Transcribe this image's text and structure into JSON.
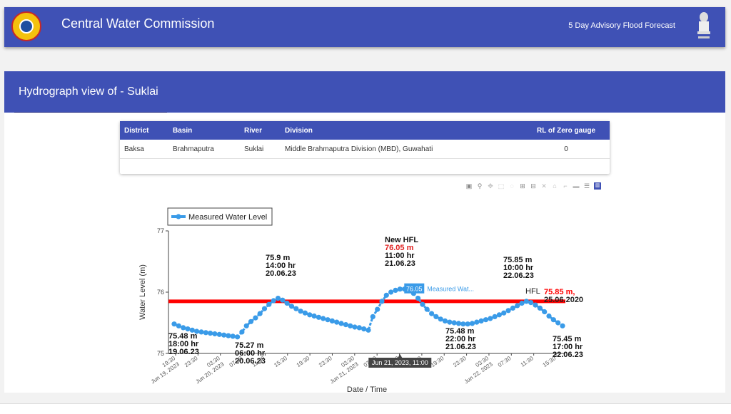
{
  "header": {
    "title": "Central Water Commission",
    "advisory_link": "5 Day Advisory Flood Forecast"
  },
  "section": {
    "title": "Hydrograph view of - Suklai"
  },
  "info_table": {
    "headers": [
      "District",
      "Basin",
      "River",
      "Division",
      "RL of Zero gauge"
    ],
    "row": [
      "Baksa",
      "Brahmaputra",
      "Suklai",
      "Middle Brahmaputra Division (MBD), Guwahati",
      "0"
    ]
  },
  "modebar": {
    "icons": [
      "camera-icon",
      "zoom-icon",
      "pan-icon",
      "box-select-icon",
      "lasso-icon",
      "zoom-in-icon",
      "zoom-out-icon",
      "autoscale-icon",
      "reset-axes-icon",
      "spike-lines-icon",
      "hover-closest-icon",
      "hover-compare-icon",
      "plotly-logo-icon"
    ]
  },
  "chart_data": {
    "type": "line",
    "xlabel": "Date / Time",
    "ylabel": "Water Level (m)",
    "ylim": [
      75,
      77
    ],
    "y_ticks": [
      "75",
      "76",
      "77"
    ],
    "x_ticks": [
      "19:30\nJun 19, 2023",
      "23:30",
      "03:30\nJun 20, 2023",
      "07:30",
      "11:30",
      "15:30",
      "19:30",
      "23:30",
      "03:30\nJun 21, 2023",
      "07:30",
      "11:30",
      "15:30",
      "19:30",
      "23:30",
      "03:30\nJun 22, 2023",
      "07:30",
      "11:30",
      "15:30"
    ],
    "legend": {
      "label": "Measured Water Level",
      "position": "top-left"
    },
    "hfl": {
      "value": 75.85,
      "label": "HFL",
      "value_label": "75.85 m,",
      "date_label": "25.06.2020",
      "color": "#ff0000"
    },
    "series": [
      {
        "name": "Measured Water Level",
        "color": "#3a9be8",
        "values": [
          75.48,
          75.45,
          75.42,
          75.4,
          75.38,
          75.36,
          75.35,
          75.34,
          75.33,
          75.32,
          75.31,
          75.3,
          75.29,
          75.28,
          75.27,
          75.35,
          75.45,
          75.52,
          75.58,
          75.65,
          75.73,
          75.8,
          75.86,
          75.9,
          75.87,
          75.82,
          75.77,
          75.73,
          75.69,
          75.66,
          75.63,
          75.61,
          75.59,
          75.57,
          75.55,
          75.53,
          75.51,
          75.49,
          75.47,
          75.45,
          75.43,
          75.42,
          75.4,
          75.38,
          75.6,
          75.72,
          75.85,
          75.95,
          76.0,
          76.03,
          76.05,
          76.05,
          76.03,
          75.98,
          75.9,
          75.8,
          75.72,
          75.65,
          75.6,
          75.56,
          75.53,
          75.51,
          75.5,
          75.49,
          75.48,
          75.48,
          75.49,
          75.51,
          75.53,
          75.55,
          75.57,
          75.6,
          75.63,
          75.66,
          75.7,
          75.74,
          75.78,
          75.82,
          75.85,
          75.83,
          75.79,
          75.74,
          75.68,
          75.61,
          75.55,
          75.5,
          75.45
        ]
      }
    ],
    "annotations": [
      {
        "lines": [
          "75.48 m",
          "18:00 hr",
          "19.06.23"
        ]
      },
      {
        "lines": [
          "75.27 m",
          "06:00 hr",
          "20.06.23"
        ]
      },
      {
        "lines": [
          "75.9 m",
          "14:00 hr",
          "20.06.23"
        ]
      },
      {
        "lines": [
          "New HFL",
          "76.05 m",
          "11:00 hr",
          "21.06.23"
        ],
        "highlight_color": "#e02020"
      },
      {
        "lines": [
          "75.48 m",
          "22:00 hr",
          "21.06.23"
        ]
      },
      {
        "lines": [
          "75.85 m",
          "10:00 hr",
          "22.06.23"
        ]
      },
      {
        "lines": [
          "75.45 m",
          "17:00 hr",
          "22.06.23"
        ]
      }
    ],
    "hover": {
      "value": "76.05",
      "series_label": "Measured Wat...",
      "x_label": "Jun 21, 2023, 11:00"
    }
  }
}
